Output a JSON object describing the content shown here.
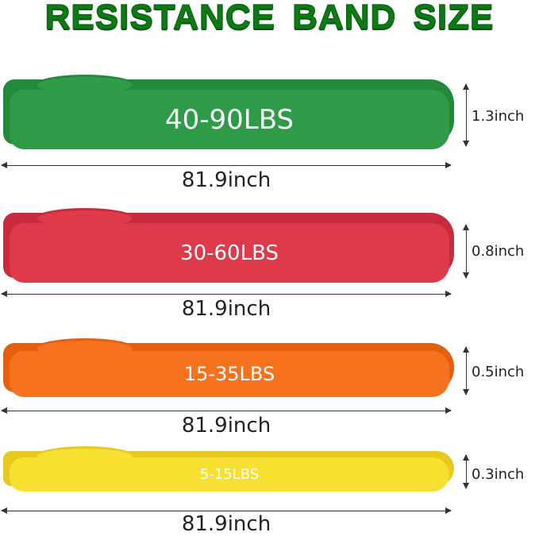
{
  "title": "RESISTANCE BAND SIZE",
  "bands": [
    {
      "resistance": "40-90LBS",
      "length": "81.9inch",
      "width": "1.3inch",
      "color": "#2f9a48",
      "shade": "#228a3a"
    },
    {
      "resistance": "30-60LBS",
      "length": "81.9inch",
      "width": "0.8inch",
      "color": "#de3a4a",
      "shade": "#c82b3c"
    },
    {
      "resistance": "15-35LBS",
      "length": "81.9inch",
      "width": "0.5inch",
      "color": "#f6721e",
      "shade": "#e45f10"
    },
    {
      "resistance": "5-15LBS",
      "length": "81.9inch",
      "width": "0.3inch",
      "color": "#f7e031",
      "shade": "#e8c91e"
    }
  ]
}
